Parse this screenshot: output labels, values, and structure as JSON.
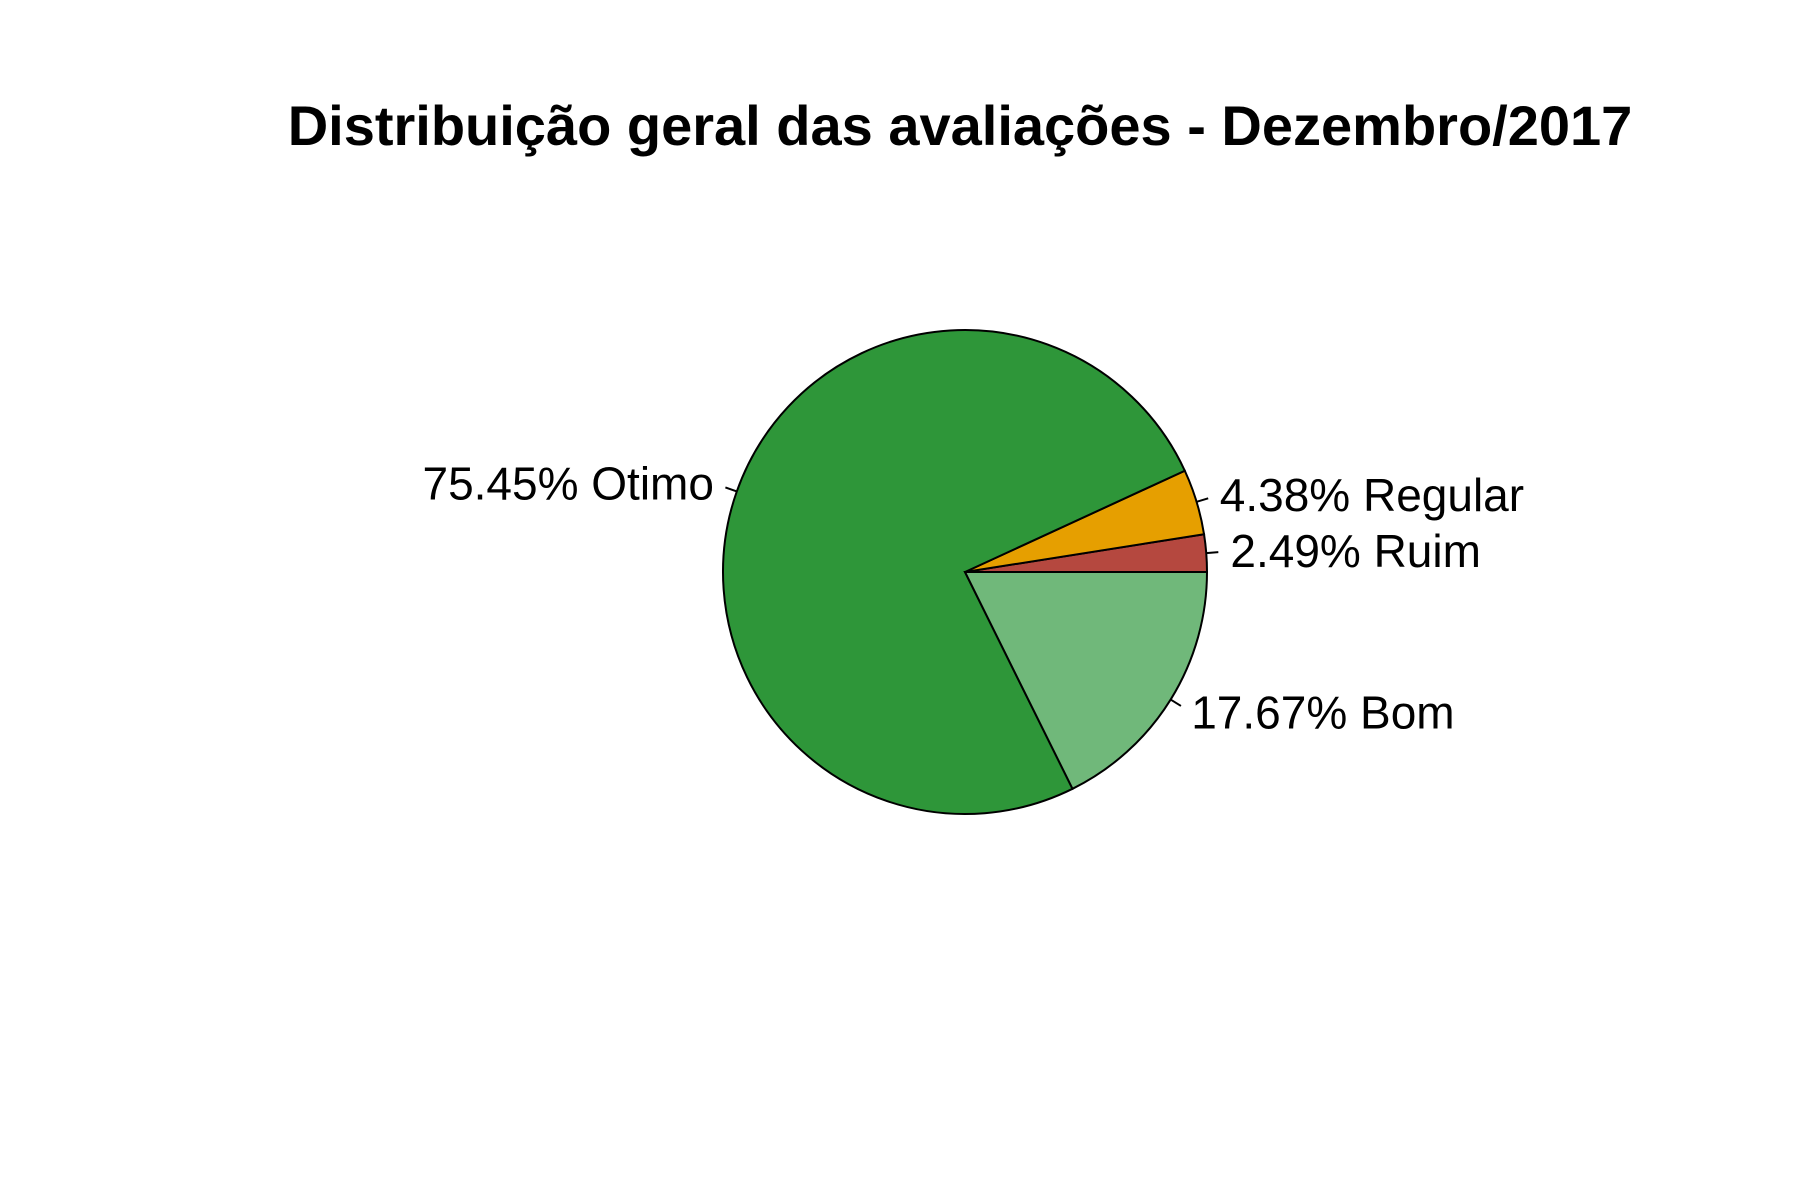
{
  "chart_data": {
    "type": "pie",
    "title": "Distribuição geral das avaliações - Dezembro/2017",
    "start_angle_deg": 0,
    "direction": "counterclockwise",
    "slices": [
      {
        "name": "Ruim",
        "value": 2.49,
        "label": "2.49% Ruim",
        "color": "#B5483F"
      },
      {
        "name": "Regular",
        "value": 4.38,
        "label": "4.38% Regular",
        "color": "#E69F00"
      },
      {
        "name": "Otimo",
        "value": 75.45,
        "label": "75.45% Otimo",
        "color": "#2E9639"
      },
      {
        "name": "Bom",
        "value": 17.67,
        "label": "17.67% Bom",
        "color": "#70B87A"
      }
    ]
  }
}
